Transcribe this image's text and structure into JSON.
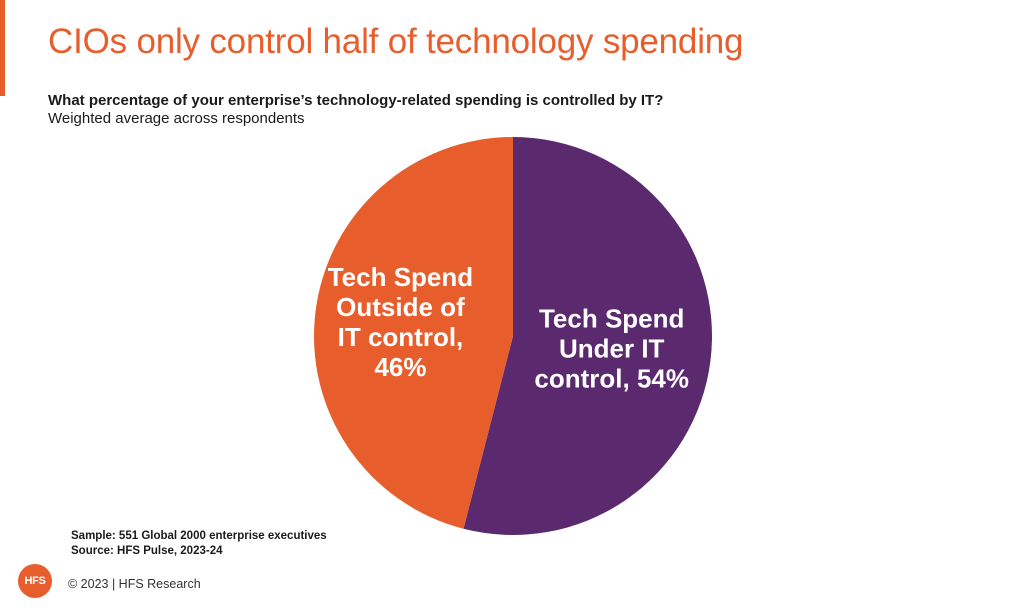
{
  "header": {
    "title": "CIOs only control half of technology spending",
    "question": "What percentage of your enterprise’s technology-related spending is controlled by IT?",
    "subtitle": "Weighted average across respondents"
  },
  "colors": {
    "accent": "#e85d2c",
    "slice_under_it": "#5b2a6e",
    "slice_outside_it": "#e85d2c"
  },
  "chart_data": {
    "type": "pie",
    "slices": [
      {
        "label_lines": [
          "Tech Spend",
          "Under IT",
          "control, 54%"
        ],
        "value": 54,
        "color": "#5b2a6e"
      },
      {
        "label_lines": [
          "Tech Spend",
          "Outside of",
          "IT control,",
          "46%"
        ],
        "value": 46,
        "color": "#e85d2c"
      }
    ],
    "start": "12 o'clock",
    "direction": "clockwise"
  },
  "footer": {
    "sample": "Sample: 551 Global 2000 enterprise executives",
    "source": "Source: HFS Pulse, 2023-24",
    "logo_text": "HFS",
    "copyright": "© 2023 | HFS Research"
  }
}
